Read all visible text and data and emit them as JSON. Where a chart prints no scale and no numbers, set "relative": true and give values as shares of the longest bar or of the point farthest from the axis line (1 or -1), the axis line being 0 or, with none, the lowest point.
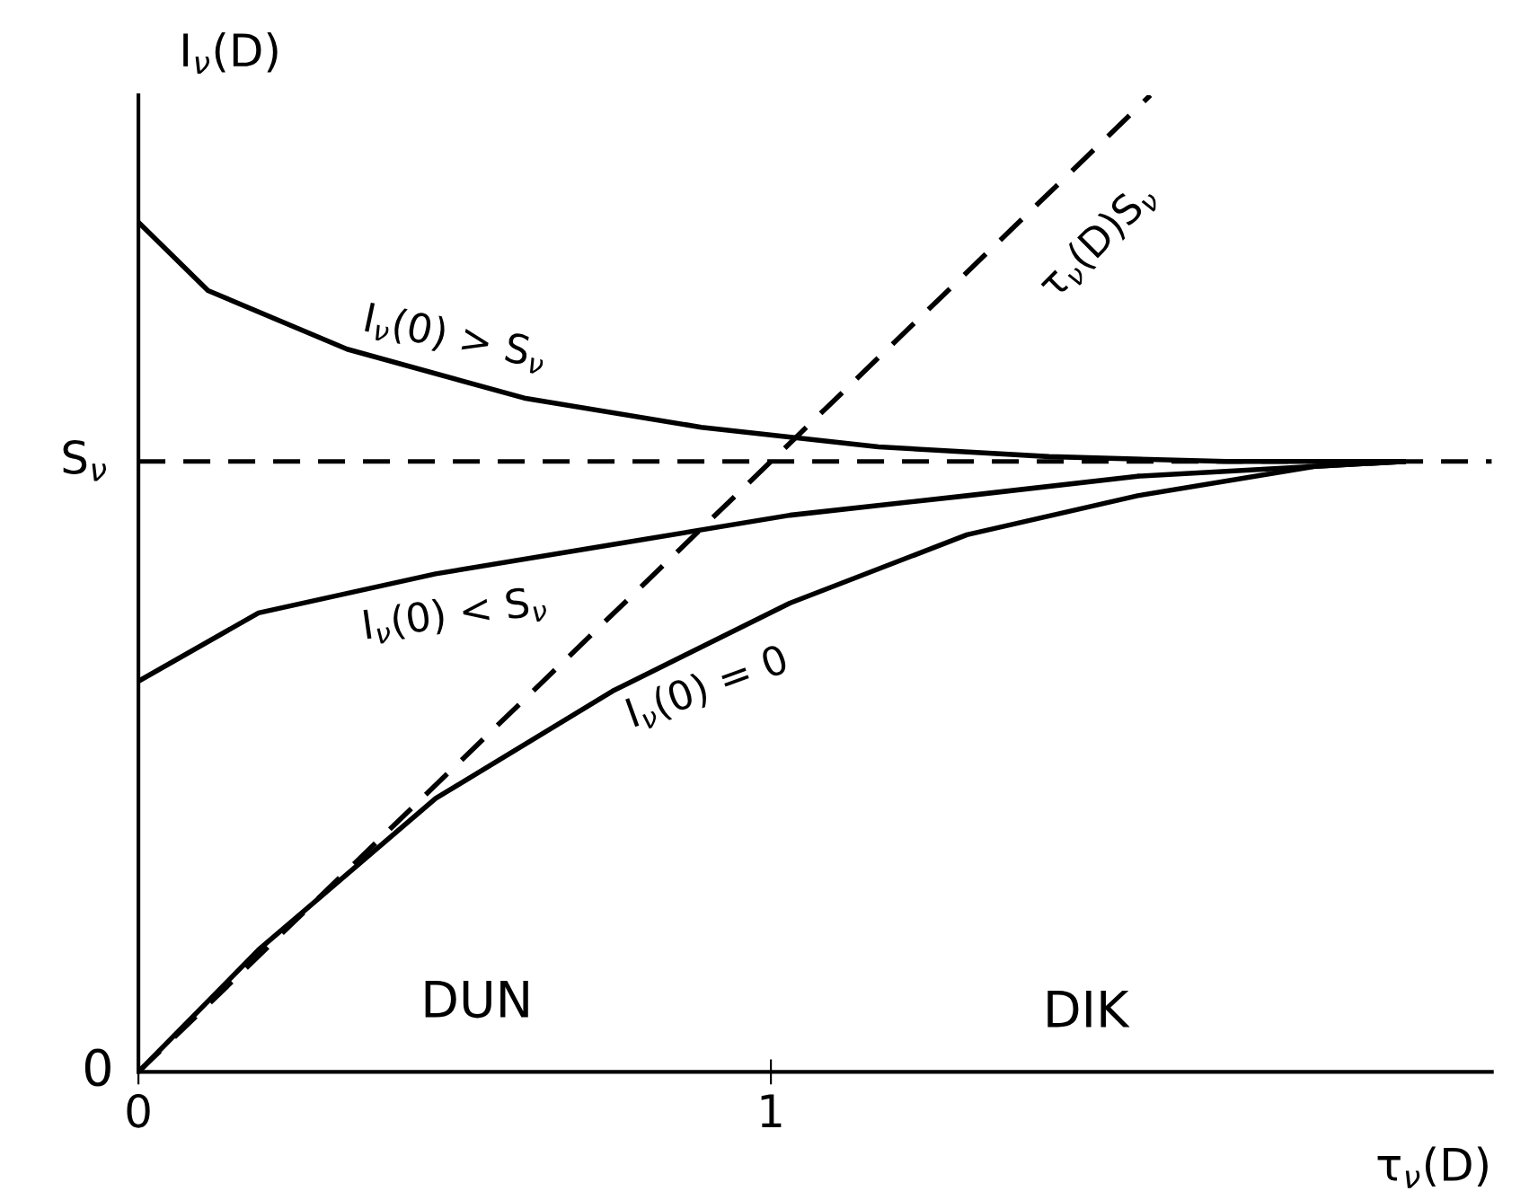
{
  "chart_data": {
    "type": "line",
    "xlabel": "τ$_{ν}$(D)",
    "ylabel": "I$_{ν}$(D)",
    "xlim": [
      0,
      2.14
    ],
    "xticks": [
      0,
      1
    ],
    "relative": true,
    "grid": false,
    "legend": false,
    "marker": "none",
    "series": [
      {
        "name": "I$_{ν}$(0) > S$_{ν}$",
        "color": "#000000",
        "line_style": "solid",
        "x": [
          0,
          0.11,
          0.33,
          0.61,
          0.89,
          1.17,
          1.44,
          1.72,
          2.0
        ],
        "values": [
          0.87,
          0.8,
          0.74,
          0.69,
          0.66,
          0.64,
          0.63,
          0.625,
          0.625
        ]
      },
      {
        "name": "I$_{ν}$(0) < S$_{ν}$",
        "color": "#000000",
        "line_style": "solid",
        "x": [
          0,
          0.19,
          0.47,
          0.75,
          1.03,
          1.31,
          1.58,
          1.86,
          2.0
        ],
        "values": [
          0.4,
          0.47,
          0.51,
          0.54,
          0.57,
          0.59,
          0.61,
          0.62,
          0.625
        ]
      },
      {
        "name": "I$_{ν}$(0) = 0",
        "color": "#000000",
        "line_style": "solid",
        "x": [
          0,
          0.19,
          0.47,
          0.75,
          1.03,
          1.31,
          1.58,
          1.86,
          2.0
        ],
        "values": [
          0,
          0.125,
          0.28,
          0.39,
          0.48,
          0.55,
          0.59,
          0.62,
          0.625
        ]
      },
      {
        "name": "τ$_{ν}$(D)S$_{ν}$",
        "color": "#000000",
        "line_style": "dashed",
        "x": [
          0,
          1.6
        ],
        "values": [
          0,
          1
        ]
      }
    ],
    "ref_lines": [
      {
        "axis": "y",
        "value": 0.625,
        "label": "S$_{ν}$",
        "color": "#000000",
        "line_style": "dashed"
      }
    ],
    "annotations": [
      "0",
      "DUN",
      "DIK"
    ]
  }
}
